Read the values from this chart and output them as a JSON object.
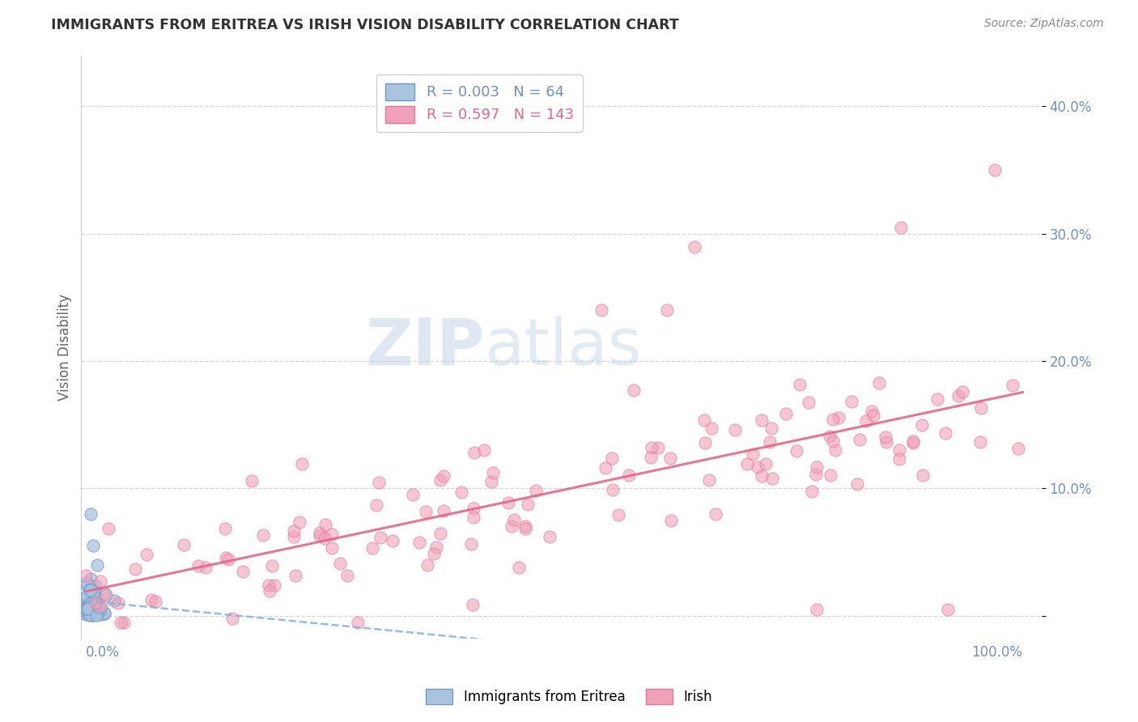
{
  "title": "IMMIGRANTS FROM ERITREA VS IRISH VISION DISABILITY CORRELATION CHART",
  "source": "Source: ZipAtlas.com",
  "ylabel": "Vision Disability",
  "xlim": [
    -0.005,
    1.02
  ],
  "ylim": [
    -0.018,
    0.44
  ],
  "yticks": [
    0.0,
    0.1,
    0.2,
    0.3,
    0.4
  ],
  "ytick_labels": [
    "",
    "10.0%",
    "20.0%",
    "30.0%",
    "40.0%"
  ],
  "legend_blue_R": "0.003",
  "legend_blue_N": "64",
  "legend_pink_R": "0.597",
  "legend_pink_N": "143",
  "blue_color": "#aac4e0",
  "pink_color": "#f0a0b8",
  "blue_edge_color": "#7099c8",
  "pink_edge_color": "#e07898",
  "blue_trend_color": "#8ab0d8",
  "pink_trend_color": "#e06888",
  "watermark_color": "#ccd8e8",
  "background_color": "#ffffff",
  "grid_color": "#cccccc",
  "axis_color": "#7090c0",
  "title_color": "#333333",
  "ylabel_color": "#666666",
  "source_color": "#888888"
}
